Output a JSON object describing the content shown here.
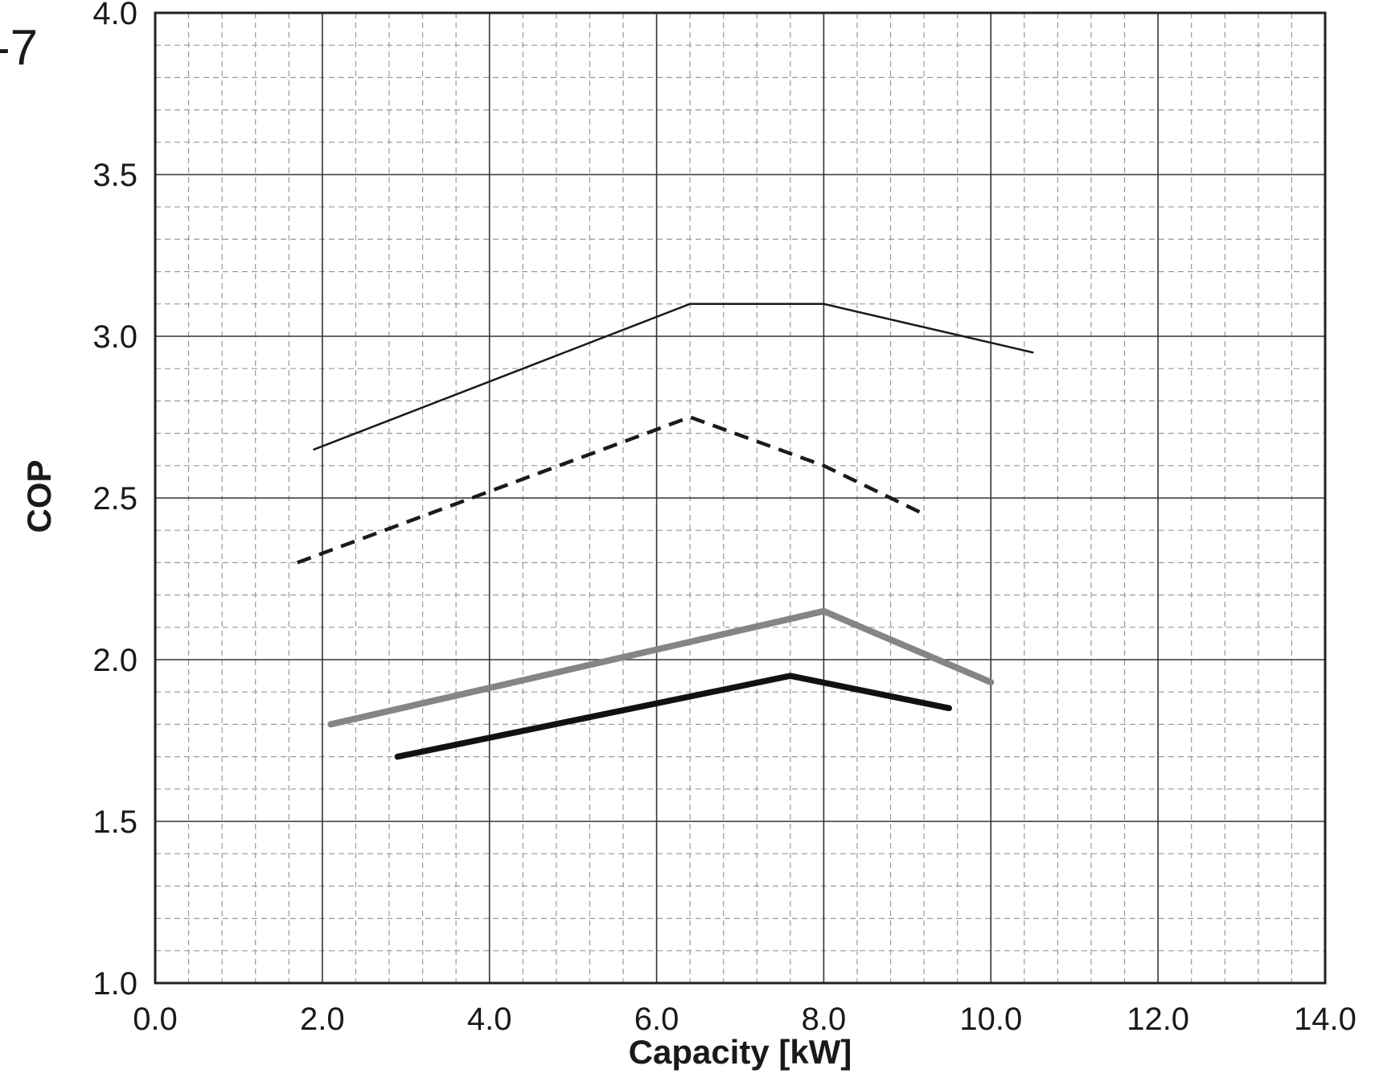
{
  "corner_label": "-7",
  "chart_data": {
    "type": "line",
    "title": "",
    "xlabel": "Capacity [kW]",
    "ylabel": "COP",
    "xlim": [
      0,
      14
    ],
    "ylim": [
      1.0,
      4.0
    ],
    "x_ticks": [
      "0.0",
      "2.0",
      "4.0",
      "6.0",
      "8.0",
      "10.0",
      "12.0",
      "14.0"
    ],
    "y_ticks": [
      "1.0",
      "1.5",
      "2.0",
      "2.5",
      "3.0",
      "3.5",
      "4.0"
    ],
    "grid": true,
    "legend": false,
    "series": [
      {
        "style": "thin-solid",
        "color": "#1a1a1a",
        "points": [
          [
            1.9,
            2.65
          ],
          [
            6.4,
            3.1
          ],
          [
            8.0,
            3.1
          ],
          [
            10.5,
            2.95
          ]
        ]
      },
      {
        "style": "dashed",
        "color": "#1a1a1a",
        "points": [
          [
            1.7,
            2.3
          ],
          [
            6.4,
            2.75
          ],
          [
            8.0,
            2.6
          ],
          [
            9.2,
            2.45
          ]
        ]
      },
      {
        "style": "thick-gray",
        "color": "#858585",
        "points": [
          [
            2.1,
            1.8
          ],
          [
            8.0,
            2.15
          ],
          [
            10.0,
            1.93
          ]
        ]
      },
      {
        "style": "thick-black",
        "color": "#111111",
        "points": [
          [
            2.9,
            1.7
          ],
          [
            7.6,
            1.95
          ],
          [
            9.5,
            1.85
          ]
        ]
      }
    ]
  }
}
